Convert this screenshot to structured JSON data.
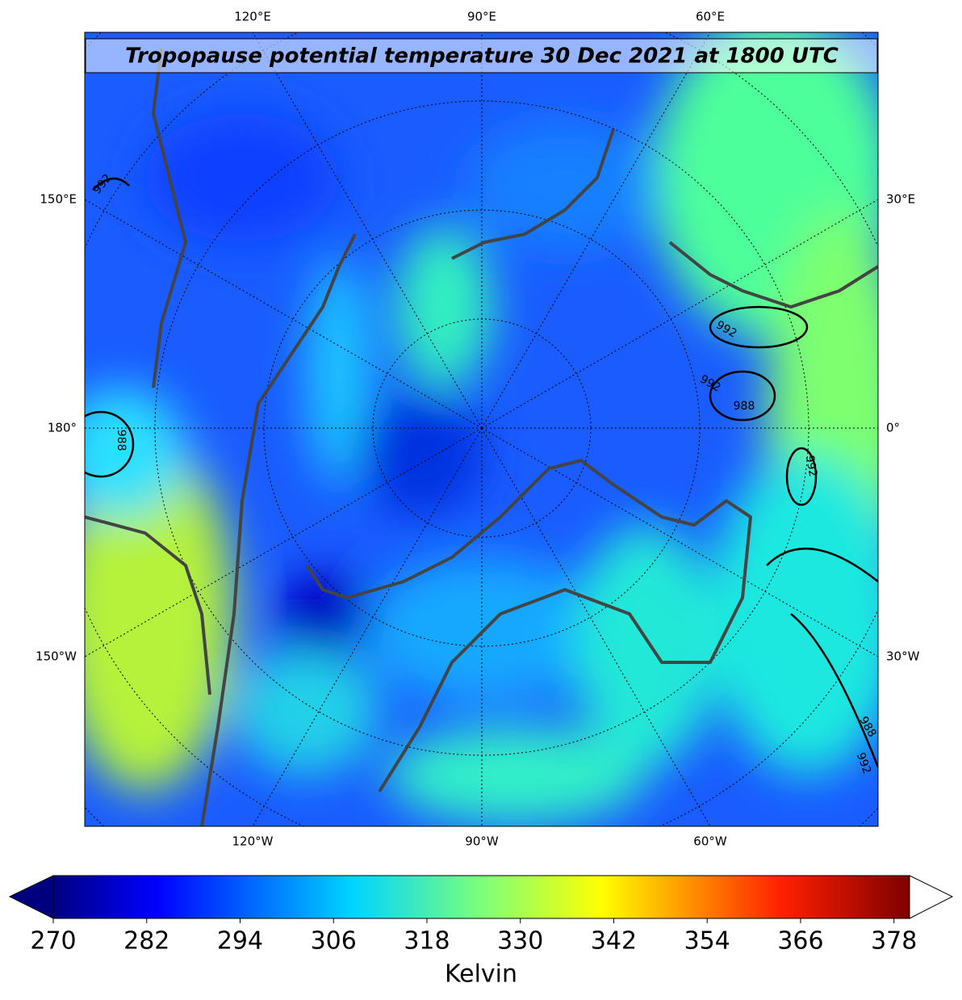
{
  "map": {
    "title": "Tropopause potential temperature 30 Dec 2021 at 1800 UTC",
    "top_labels": [
      "120°E",
      "90°E",
      "60°E"
    ],
    "bottom_labels": [
      "120°W",
      "90°W",
      "60°W"
    ],
    "left_labels": [
      "150°E",
      "180°",
      "150°W"
    ],
    "right_labels": [
      "30°E",
      "0°",
      "30°W"
    ],
    "contour_labels": [
      "992",
      "988",
      "992",
      "992",
      "988",
      "992",
      "988",
      "992"
    ]
  },
  "colorbar": {
    "label": "Kelvin",
    "lim": [
      270,
      380
    ],
    "ticks": [
      270,
      282,
      294,
      306,
      318,
      330,
      342,
      354,
      366,
      378
    ]
  }
}
